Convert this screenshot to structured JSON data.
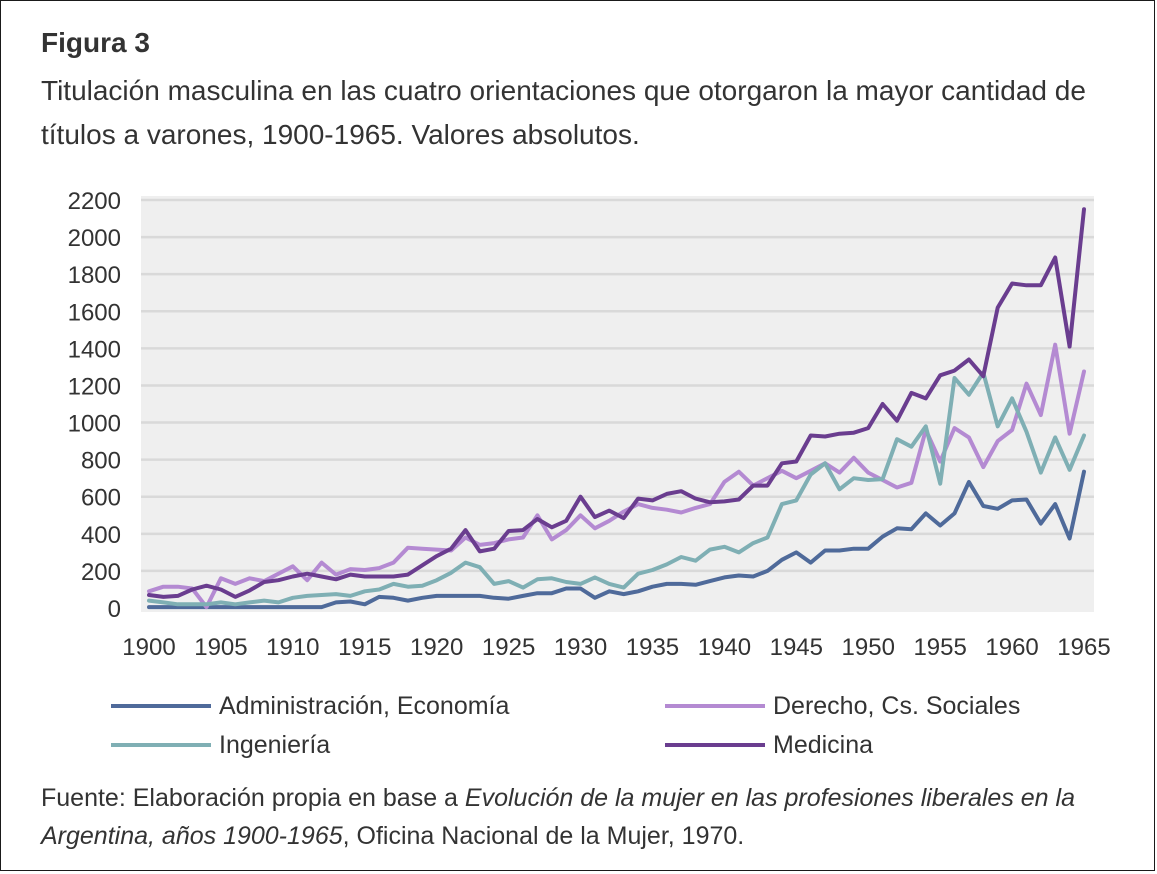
{
  "figure": {
    "label": "Figura 3",
    "title": "Titulación masculina en las cuatro orientaciones que otorgaron la mayor cantidad de títulos a varones, 1900-1965. Valores absolutos."
  },
  "source": {
    "prefix": "Fuente: Elaboración propia en base a ",
    "italic": "Evolución de la mujer en las profesiones liberales en la Argentina, años 1900-1965",
    "suffix": ", Oficina Nacional de la Mujer, 1970."
  },
  "colors": {
    "plot_background": "#efefef",
    "gridline": "#d9d9d9",
    "axis_text": "#333333"
  },
  "chart_data": {
    "type": "line",
    "title": "",
    "xlabel": "",
    "ylabel": "",
    "x": [
      1900,
      1901,
      1902,
      1903,
      1904,
      1905,
      1906,
      1907,
      1908,
      1909,
      1910,
      1911,
      1912,
      1913,
      1914,
      1915,
      1916,
      1917,
      1918,
      1919,
      1920,
      1921,
      1922,
      1923,
      1924,
      1925,
      1926,
      1927,
      1928,
      1929,
      1930,
      1931,
      1932,
      1933,
      1934,
      1935,
      1936,
      1937,
      1938,
      1939,
      1940,
      1941,
      1942,
      1943,
      1944,
      1945,
      1946,
      1947,
      1948,
      1949,
      1950,
      1951,
      1952,
      1953,
      1954,
      1955,
      1956,
      1957,
      1958,
      1959,
      1960,
      1961,
      1962,
      1963,
      1964,
      1965
    ],
    "x_ticks": [
      "1900",
      "1905",
      "1910",
      "1915",
      "1920",
      "1925",
      "1930",
      "1935",
      "1940",
      "1945",
      "1950",
      "1955",
      "1960",
      "1965"
    ],
    "y_ticks": [
      "0",
      "200",
      "400",
      "600",
      "800",
      "1000",
      "1200",
      "1400",
      "1600",
      "1800",
      "2000",
      "2200"
    ],
    "ylim": [
      0,
      2200
    ],
    "grid": true,
    "legend_position": "bottom",
    "series": [
      {
        "name": "Administración, Economía",
        "color": "#4f6a9a",
        "values": [
          5,
          5,
          5,
          5,
          5,
          5,
          5,
          5,
          5,
          5,
          5,
          5,
          5,
          30,
          35,
          20,
          60,
          55,
          40,
          55,
          65,
          65,
          65,
          65,
          55,
          50,
          65,
          80,
          80,
          105,
          105,
          55,
          90,
          75,
          90,
          115,
          130,
          130,
          125,
          145,
          165,
          175,
          170,
          200,
          260,
          300,
          245,
          310,
          310,
          320,
          320,
          385,
          430,
          425,
          510,
          445,
          510,
          680,
          550,
          535,
          580,
          585,
          455,
          560,
          375,
          735
        ]
      },
      {
        "name": "Derecho, Cs. Sociales",
        "color": "#b48ad2",
        "values": [
          90,
          115,
          115,
          105,
          5,
          160,
          130,
          160,
          145,
          185,
          225,
          150,
          245,
          180,
          210,
          205,
          215,
          245,
          325,
          320,
          315,
          310,
          380,
          340,
          350,
          370,
          380,
          500,
          370,
          420,
          500,
          430,
          470,
          520,
          560,
          540,
          530,
          515,
          540,
          560,
          680,
          735,
          660,
          700,
          740,
          700,
          740,
          780,
          730,
          810,
          730,
          690,
          650,
          675,
          960,
          790,
          970,
          920,
          760,
          900,
          960,
          1210,
          1040,
          1420,
          940,
          1275
        ]
      },
      {
        "name": "Ingeniería",
        "color": "#7fafb4",
        "values": [
          40,
          30,
          20,
          20,
          20,
          30,
          20,
          30,
          40,
          30,
          55,
          65,
          70,
          75,
          65,
          90,
          100,
          130,
          115,
          120,
          150,
          190,
          245,
          220,
          130,
          145,
          110,
          155,
          160,
          140,
          130,
          165,
          130,
          110,
          185,
          205,
          235,
          275,
          255,
          315,
          330,
          300,
          350,
          380,
          560,
          580,
          720,
          780,
          640,
          700,
          690,
          695,
          910,
          870,
          980,
          670,
          1240,
          1150,
          1270,
          980,
          1130,
          950,
          730,
          920,
          745,
          930
        ]
      },
      {
        "name": "Medicina",
        "color": "#6a3d8f",
        "values": [
          70,
          60,
          65,
          100,
          120,
          100,
          60,
          95,
          140,
          150,
          170,
          185,
          170,
          155,
          180,
          170,
          170,
          170,
          180,
          230,
          280,
          320,
          420,
          305,
          320,
          415,
          420,
          480,
          435,
          470,
          600,
          490,
          525,
          485,
          590,
          580,
          615,
          630,
          590,
          570,
          575,
          585,
          660,
          660,
          780,
          790,
          930,
          925,
          940,
          945,
          970,
          1100,
          1010,
          1160,
          1130,
          1255,
          1280,
          1340,
          1250,
          1620,
          1750,
          1740,
          1740,
          1890,
          1410,
          2150
        ]
      }
    ]
  }
}
